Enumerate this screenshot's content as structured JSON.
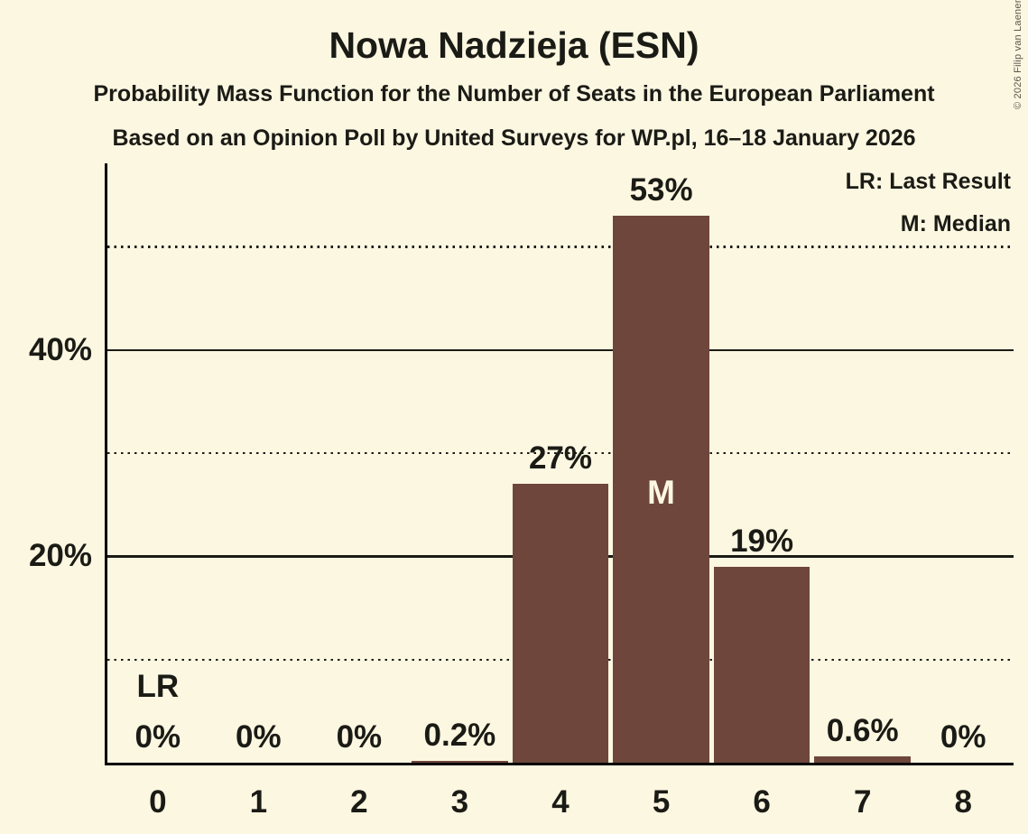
{
  "copyright": "© 2026 Filip van Laenen",
  "chart_data": {
    "type": "bar",
    "title": "Nowa Nadzieja (ESN)",
    "subtitle1": "Probability Mass Function for the Number of Seats in the European Parliament",
    "subtitle2": "Based on an Opinion Poll by United Surveys for WP.pl, 16–18 January 2026",
    "xlabel": "",
    "ylabel": "",
    "categories": [
      "0",
      "1",
      "2",
      "3",
      "4",
      "5",
      "6",
      "7",
      "8"
    ],
    "values": [
      0,
      0,
      0,
      0.2,
      27,
      53,
      19,
      0.6,
      0
    ],
    "value_labels": [
      "0%",
      "0%",
      "0%",
      "0.2%",
      "27%",
      "53%",
      "19%",
      "0.6%",
      "0%"
    ],
    "ylim": [
      0,
      58
    ],
    "yticks": [
      {
        "value": 20,
        "label": "20%"
      },
      {
        "value": 40,
        "label": "40%"
      }
    ],
    "gridlines": [
      {
        "value": 10,
        "style": "dotted"
      },
      {
        "value": 20,
        "style": "solid"
      },
      {
        "value": 30,
        "style": "dotted"
      },
      {
        "value": 40,
        "style": "solid"
      },
      {
        "value": 50,
        "style": "dotted"
      }
    ],
    "grid": true,
    "legend_position": "top-right",
    "legend": [
      "LR: Last Result",
      "M: Median"
    ],
    "annotations": {
      "last_result_category": "0",
      "last_result_label": "LR",
      "median_category": "5",
      "median_label": "M"
    },
    "colors": {
      "background": "#FCF7E1",
      "bar": "#6E463B",
      "text": "#1B1B16",
      "axis": "#000000",
      "median_text": "#FCF7E1",
      "copyright_text": "#5A574D"
    }
  }
}
